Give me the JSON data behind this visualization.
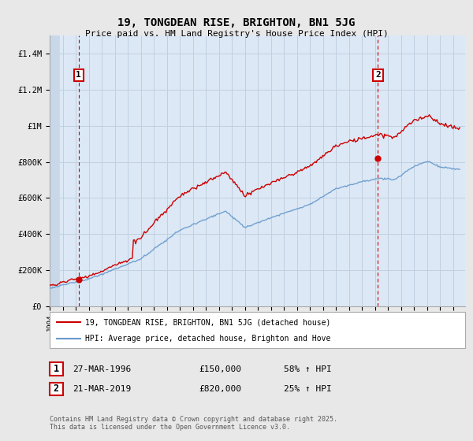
{
  "title": "19, TONGDEAN RISE, BRIGHTON, BN1 5JG",
  "subtitle": "Price paid vs. HM Land Registry's House Price Index (HPI)",
  "legend_label_red": "19, TONGDEAN RISE, BRIGHTON, BN1 5JG (detached house)",
  "legend_label_blue": "HPI: Average price, detached house, Brighton and Hove",
  "annotation1_date": "27-MAR-1996",
  "annotation1_price": "£150,000",
  "annotation1_hpi": "58% ↑ HPI",
  "annotation2_date": "21-MAR-2019",
  "annotation2_price": "£820,000",
  "annotation2_hpi": "25% ↑ HPI",
  "footer": "Contains HM Land Registry data © Crown copyright and database right 2025.\nThis data is licensed under the Open Government Licence v3.0.",
  "ylim": [
    0,
    1500000
  ],
  "yticks": [
    0,
    200000,
    400000,
    600000,
    800000,
    1000000,
    1200000,
    1400000
  ],
  "ytick_labels": [
    "£0",
    "£200K",
    "£400K",
    "£600K",
    "£800K",
    "£1M",
    "£1.2M",
    "£1.4M"
  ],
  "background_color": "#e8e8e8",
  "plot_bg_color": "#dce8f5",
  "red_color": "#cc0000",
  "blue_color": "#6699cc",
  "grid_color": "#c0d0e0",
  "hatch_color": "#c8d8e8",
  "annotation_box_color": "#cc0000",
  "sale1_x": 1996.23,
  "sale1_y": 150000,
  "sale2_x": 2019.22,
  "sale2_y": 820000,
  "xmin": 1994,
  "xmax": 2025.9
}
